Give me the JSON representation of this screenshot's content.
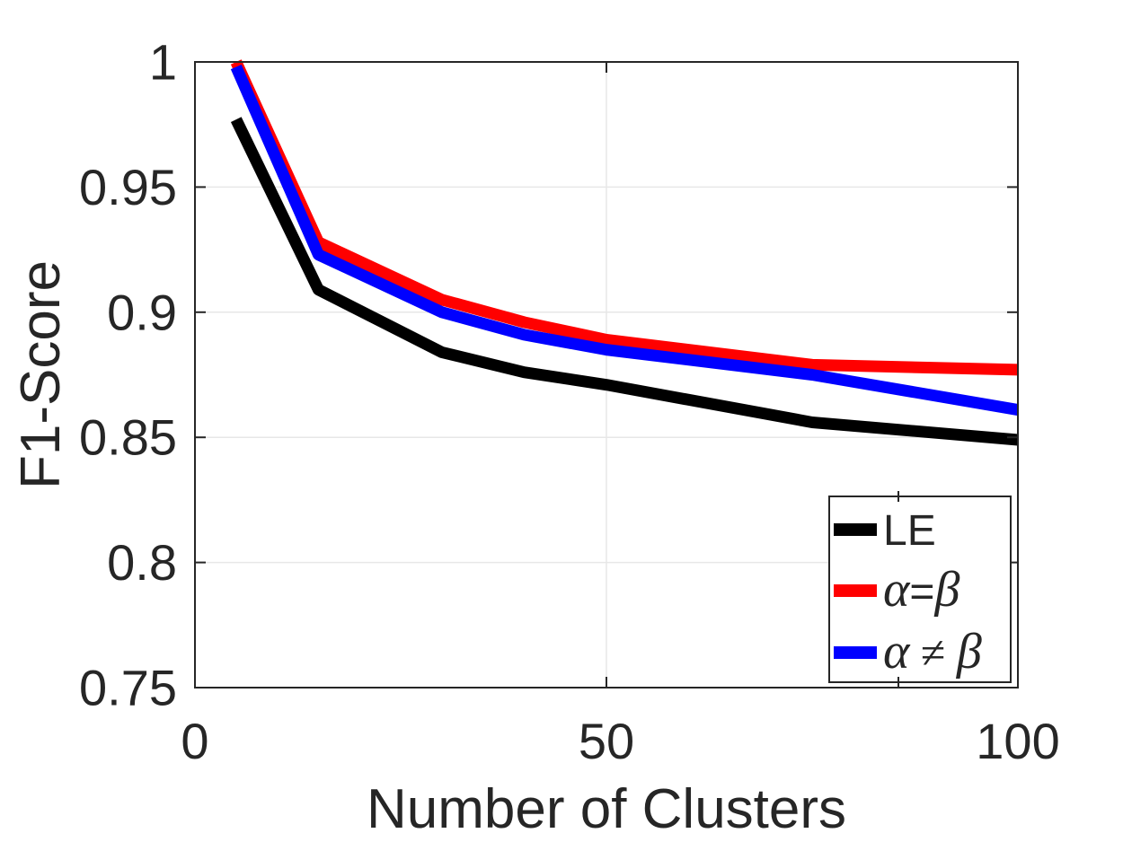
{
  "chart_data": {
    "type": "line",
    "title": "",
    "xlabel": "Number of Clusters",
    "ylabel": "F1-Score",
    "xlim": [
      0,
      100
    ],
    "ylim": [
      0.75,
      1.0
    ],
    "xticks": [
      0,
      50,
      100
    ],
    "xtick_labels": [
      "0",
      "50",
      "100"
    ],
    "yticks": [
      0.75,
      0.8,
      0.85,
      0.9,
      0.95,
      1
    ],
    "ytick_labels": [
      "0.75",
      "0.8",
      "0.85",
      "0.9",
      "0.95",
      "1"
    ],
    "grid": true,
    "legend_position": "southeast",
    "x": [
      5,
      15,
      30,
      40,
      50,
      75,
      100
    ],
    "series": [
      {
        "name": "LE",
        "color": "#000000",
        "values": [
          0.977,
          0.909,
          0.884,
          0.876,
          0.871,
          0.856,
          0.849
        ],
        "label_runs": [
          {
            "t": "LE",
            "f": "sans"
          }
        ]
      },
      {
        "name": "alpha-equal-beta",
        "color": "#ff0000",
        "values": [
          1.0,
          0.928,
          0.905,
          0.896,
          0.889,
          0.879,
          0.877
        ],
        "label_runs": [
          {
            "t": "α",
            "f": "math"
          },
          {
            "t": "=",
            "f": "sans"
          },
          {
            "t": "β",
            "f": "math"
          }
        ]
      },
      {
        "name": "alpha-notequal-beta",
        "color": "#0000ff",
        "values": [
          0.998,
          0.923,
          0.9,
          0.891,
          0.885,
          0.875,
          0.861
        ],
        "label_runs": [
          {
            "t": "α",
            "f": "math"
          },
          {
            "t": " ≠ ",
            "f": "serif"
          },
          {
            "t": "β",
            "f": "math"
          }
        ]
      }
    ],
    "colors": {
      "axis": "#262626",
      "grid": "#e7e7e7",
      "background": "#ffffff",
      "legend_border": "#262626",
      "legend_background": "#ffffff",
      "text": "#262626"
    }
  }
}
